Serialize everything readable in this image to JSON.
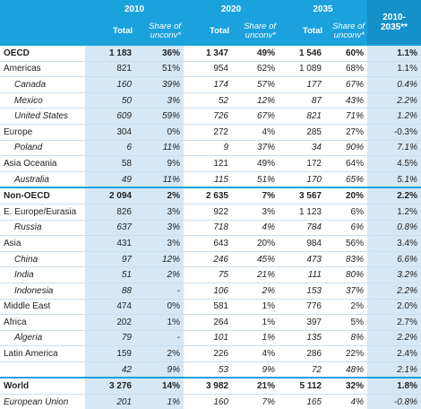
{
  "header": {
    "years": [
      "2010",
      "2020",
      "2035"
    ],
    "subheaders": [
      "Total",
      "Share of unconv*",
      "Total",
      "Share of unconv*",
      "Total",
      "Share of unconv*"
    ],
    "last": "2010-2035**"
  },
  "table": {
    "rows": [
      {
        "label": "OECD",
        "cells": [
          "1 183",
          "36%",
          "1 347",
          "49%",
          "1 546",
          "60%",
          "1.1%"
        ]
      },
      {
        "label": "Americas",
        "cells": [
          "821",
          "51%",
          "954",
          "62%",
          "1 089",
          "68%",
          "1.1%"
        ]
      },
      {
        "label": "Canada",
        "cells": [
          "160",
          "39%",
          "174",
          "57%",
          "177",
          "67%",
          "0.4%"
        ]
      },
      {
        "label": "Mexico",
        "cells": [
          "50",
          "3%",
          "52",
          "12%",
          "87",
          "43%",
          "2.2%"
        ]
      },
      {
        "label": "United States",
        "cells": [
          "609",
          "59%",
          "726",
          "67%",
          "821",
          "71%",
          "1.2%"
        ]
      },
      {
        "label": "Europe",
        "cells": [
          "304",
          "0%",
          "272",
          "4%",
          "285",
          "27%",
          "-0.3%"
        ]
      },
      {
        "label": "Poland",
        "cells": [
          "6",
          "11%",
          "9",
          "37%",
          "34",
          "90%",
          "7.1%"
        ]
      },
      {
        "label": "Asia Oceania",
        "cells": [
          "58",
          "9%",
          "121",
          "49%",
          "172",
          "64%",
          "4.5%"
        ]
      },
      {
        "label": "Australia",
        "cells": [
          "49",
          "11%",
          "115",
          "51%",
          "170",
          "65%",
          "5.1%"
        ]
      },
      {
        "label": "Non-OECD",
        "cells": [
          "2 094",
          "2%",
          "2 635",
          "7%",
          "3 567",
          "20%",
          "2.2%"
        ]
      },
      {
        "label": "E. Europe/Eurasia",
        "cells": [
          "826",
          "3%",
          "922",
          "3%",
          "1 123",
          "6%",
          "1.2%"
        ]
      },
      {
        "label": "Russia",
        "cells": [
          "637",
          "3%",
          "718",
          "4%",
          "784",
          "6%",
          "0.8%"
        ]
      },
      {
        "label": "Asia",
        "cells": [
          "431",
          "3%",
          "643",
          "20%",
          "984",
          "56%",
          "3.4%"
        ]
      },
      {
        "label": "China",
        "cells": [
          "97",
          "12%",
          "246",
          "45%",
          "473",
          "83%",
          "6.6%"
        ]
      },
      {
        "label": "India",
        "cells": [
          "51",
          "2%",
          "75",
          "21%",
          "111",
          "80%",
          "3.2%"
        ]
      },
      {
        "label": "Indonesia",
        "cells": [
          "88",
          "-",
          "106",
          "2%",
          "153",
          "37%",
          "2.2%"
        ]
      },
      {
        "label": "Middle East",
        "cells": [
          "474",
          "0%",
          "581",
          "1%",
          "776",
          "2%",
          "2.0%"
        ]
      },
      {
        "label": "Africa",
        "cells": [
          "202",
          "1%",
          "264",
          "1%",
          "397",
          "5%",
          "2.7%"
        ]
      },
      {
        "label": "Algeria",
        "cells": [
          "79",
          "-",
          "101",
          "1%",
          "135",
          "8%",
          "2.2%"
        ]
      },
      {
        "label": "Latin America",
        "cells": [
          "159",
          "2%",
          "226",
          "4%",
          "286",
          "22%",
          "2.4%"
        ]
      },
      {
        "label": null,
        "cells": [
          "42",
          "9%",
          "53",
          "9%",
          "72",
          "48%",
          "2.1%"
        ]
      },
      {
        "label": "World",
        "cells": [
          "3 276",
          "14%",
          "3 982",
          "21%",
          "5 112",
          "32%",
          "1.8%"
        ]
      },
      {
        "label": "European Union",
        "cells": [
          "201",
          "1%",
          "160",
          "7%",
          "165",
          "4%",
          "-0.8%"
        ]
      }
    ]
  }
}
